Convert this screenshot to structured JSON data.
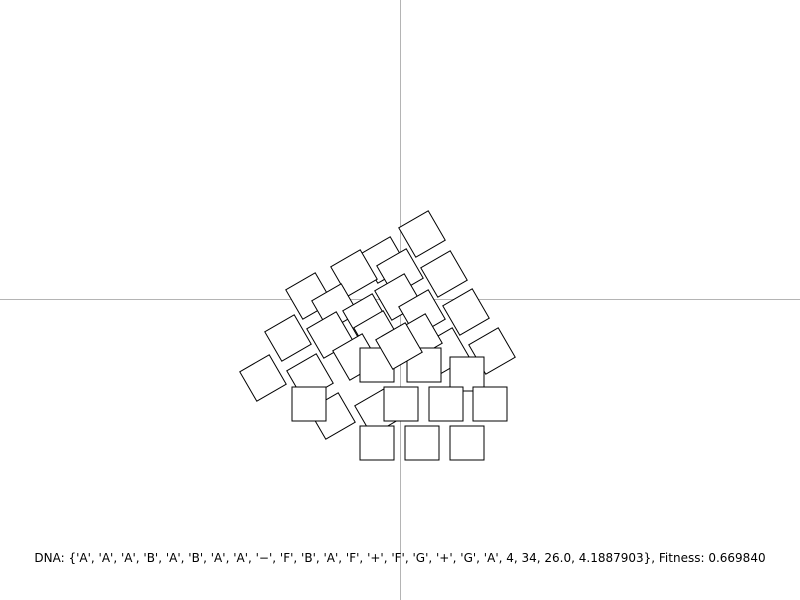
{
  "status": {
    "text": "DNA: {'A', 'A', 'A', 'B', 'A', 'B', 'A', 'A', '−', 'F', 'B', 'A', 'F', '+', 'F', 'G', '+', 'G', 'A', 4, 34, 26.0, 4.1887903}, Fitness: 0.669840"
  },
  "colors": {
    "background": "#ffffff",
    "axis": "#b4b4b4",
    "square_fill": "#ffffff",
    "square_stroke": "#000000"
  }
}
